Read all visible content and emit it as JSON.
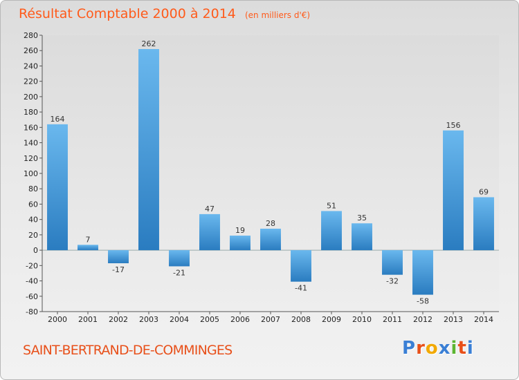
{
  "header": {
    "title": "Résultat Comptable 2000 à 2014",
    "subtitle": "(en milliers d'€)"
  },
  "footer": {
    "commune": "SAINT-BERTRAND-DE-COMMINGES",
    "logo_text": "Proxiti",
    "logo_colors": [
      "#3a7fd5",
      "#e8501a",
      "#f2a900",
      "#3a7fd5",
      "#5cb531",
      "#e8501a",
      "#3a7fd5"
    ]
  },
  "colors": {
    "bar_light": "#6ab8ee",
    "bar_dark": "#2a7cc0",
    "title": "#ff5a1a"
  },
  "chart_data": {
    "type": "bar",
    "title": "Résultat Comptable 2000 à 2014",
    "subtitle": "(en milliers d'€)",
    "categories": [
      "2000",
      "2001",
      "2002",
      "2003",
      "2004",
      "2005",
      "2006",
      "2007",
      "2008",
      "2009",
      "2010",
      "2011",
      "2012",
      "2013",
      "2014"
    ],
    "values": [
      164,
      7,
      -17,
      262,
      -21,
      47,
      19,
      28,
      -41,
      51,
      35,
      -32,
      -58,
      156,
      69
    ],
    "ylim": [
      -80,
      280
    ],
    "yticks": [
      280,
      260,
      240,
      220,
      200,
      180,
      160,
      140,
      120,
      100,
      80,
      60,
      40,
      20,
      0,
      -20,
      -40,
      -60,
      -80
    ],
    "grid": false
  }
}
